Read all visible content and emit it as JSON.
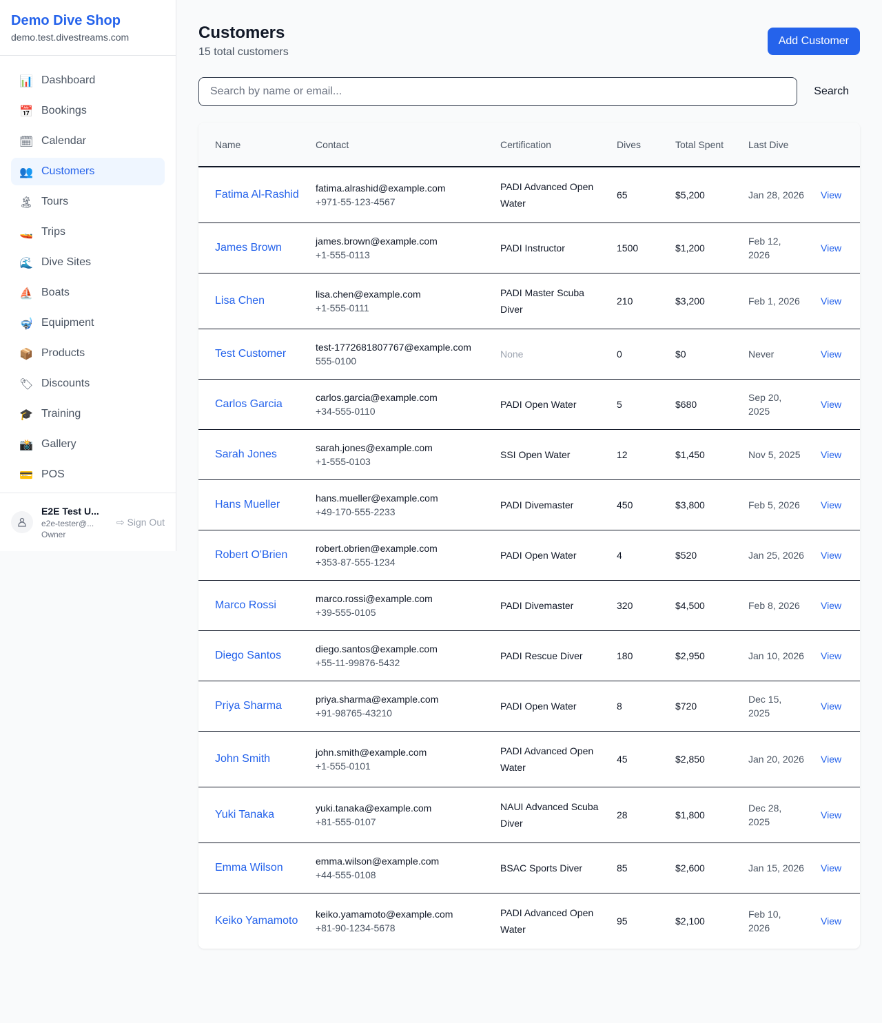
{
  "sidebar": {
    "brand": "Demo Dive Shop",
    "domain": "demo.test.divestreams.com",
    "items": [
      {
        "label": "Dashboard",
        "icon": "📊",
        "name": "bar-chart"
      },
      {
        "label": "Bookings",
        "icon": "📅",
        "name": "calendar-date"
      },
      {
        "label": "Calendar",
        "icon": "🗓",
        "name": "spiral-calendar"
      },
      {
        "label": "Customers",
        "icon": "👥",
        "name": "people",
        "active": true
      },
      {
        "label": "Tours",
        "icon": "🏝",
        "name": "island"
      },
      {
        "label": "Trips",
        "icon": "🚤",
        "name": "speedboat"
      },
      {
        "label": "Dive Sites",
        "icon": "🌊",
        "name": "wave"
      },
      {
        "label": "Boats",
        "icon": "⛵",
        "name": "sailboat"
      },
      {
        "label": "Equipment",
        "icon": "🤿",
        "name": "diving-mask"
      },
      {
        "label": "Products",
        "icon": "📦",
        "name": "package"
      },
      {
        "label": "Discounts",
        "icon": "🏷",
        "name": "tag"
      },
      {
        "label": "Training",
        "icon": "🎓",
        "name": "graduation-cap"
      },
      {
        "label": "Gallery",
        "icon": "📸",
        "name": "camera-flash"
      },
      {
        "label": "POS",
        "icon": "💳",
        "name": "credit-card"
      }
    ],
    "user": {
      "name": "E2E Test U...",
      "email": "e2e-tester@...",
      "role": "Owner",
      "signout": "Sign Out"
    }
  },
  "header": {
    "title": "Customers",
    "subtitle": "15 total customers",
    "add_label": "Add Customer"
  },
  "search": {
    "placeholder": "Search by name or email...",
    "value": "",
    "button": "Search"
  },
  "table": {
    "columns": [
      "Name",
      "Contact",
      "Certification",
      "Dives",
      "Total Spent",
      "Last Dive",
      ""
    ],
    "view_label": "View",
    "rows": [
      {
        "name": "Fatima Al-Rashid",
        "email": "fatima.alrashid@example.com",
        "phone": "+971-55-123-4567",
        "cert": "PADI Advanced Open Water",
        "dives": "65",
        "spent": "$5,200",
        "last": "Jan 28, 2026"
      },
      {
        "name": "James Brown",
        "email": "james.brown@example.com",
        "phone": "+1-555-0113",
        "cert": "PADI Instructor",
        "dives": "1500",
        "spent": "$1,200",
        "last": "Feb 12, 2026"
      },
      {
        "name": "Lisa Chen",
        "email": "lisa.chen@example.com",
        "phone": "+1-555-0111",
        "cert": "PADI Master Scuba Diver",
        "dives": "210",
        "spent": "$3,200",
        "last": "Feb 1, 2026"
      },
      {
        "name": "Test Customer",
        "email": "test-1772681807767@example.com",
        "phone": "555-0100",
        "cert": "None",
        "dives": "0",
        "spent": "$0",
        "last": "Never"
      },
      {
        "name": "Carlos Garcia",
        "email": "carlos.garcia@example.com",
        "phone": "+34-555-0110",
        "cert": "PADI Open Water",
        "dives": "5",
        "spent": "$680",
        "last": "Sep 20, 2025"
      },
      {
        "name": "Sarah Jones",
        "email": "sarah.jones@example.com",
        "phone": "+1-555-0103",
        "cert": "SSI Open Water",
        "dives": "12",
        "spent": "$1,450",
        "last": "Nov 5, 2025"
      },
      {
        "name": "Hans Mueller",
        "email": "hans.mueller@example.com",
        "phone": "+49-170-555-2233",
        "cert": "PADI Divemaster",
        "dives": "450",
        "spent": "$3,800",
        "last": "Feb 5, 2026"
      },
      {
        "name": "Robert O'Brien",
        "email": "robert.obrien@example.com",
        "phone": "+353-87-555-1234",
        "cert": "PADI Open Water",
        "dives": "4",
        "spent": "$520",
        "last": "Jan 25, 2026"
      },
      {
        "name": "Marco Rossi",
        "email": "marco.rossi@example.com",
        "phone": "+39-555-0105",
        "cert": "PADI Divemaster",
        "dives": "320",
        "spent": "$4,500",
        "last": "Feb 8, 2026"
      },
      {
        "name": "Diego Santos",
        "email": "diego.santos@example.com",
        "phone": "+55-11-99876-5432",
        "cert": "PADI Rescue Diver",
        "dives": "180",
        "spent": "$2,950",
        "last": "Jan 10, 2026"
      },
      {
        "name": "Priya Sharma",
        "email": "priya.sharma@example.com",
        "phone": "+91-98765-43210",
        "cert": "PADI Open Water",
        "dives": "8",
        "spent": "$720",
        "last": "Dec 15, 2025"
      },
      {
        "name": "John Smith",
        "email": "john.smith@example.com",
        "phone": "+1-555-0101",
        "cert": "PADI Advanced Open Water",
        "dives": "45",
        "spent": "$2,850",
        "last": "Jan 20, 2026"
      },
      {
        "name": "Yuki Tanaka",
        "email": "yuki.tanaka@example.com",
        "phone": "+81-555-0107",
        "cert": "NAUI Advanced Scuba Diver",
        "dives": "28",
        "spent": "$1,800",
        "last": "Dec 28, 2025"
      },
      {
        "name": "Emma Wilson",
        "email": "emma.wilson@example.com",
        "phone": "+44-555-0108",
        "cert": "BSAC Sports Diver",
        "dives": "85",
        "spent": "$2,600",
        "last": "Jan 15, 2026"
      },
      {
        "name": "Keiko Yamamoto",
        "email": "keiko.yamamoto@example.com",
        "phone": "+81-90-1234-5678",
        "cert": "PADI Advanced Open Water",
        "dives": "95",
        "spent": "$2,100",
        "last": "Feb 10, 2026"
      }
    ]
  }
}
